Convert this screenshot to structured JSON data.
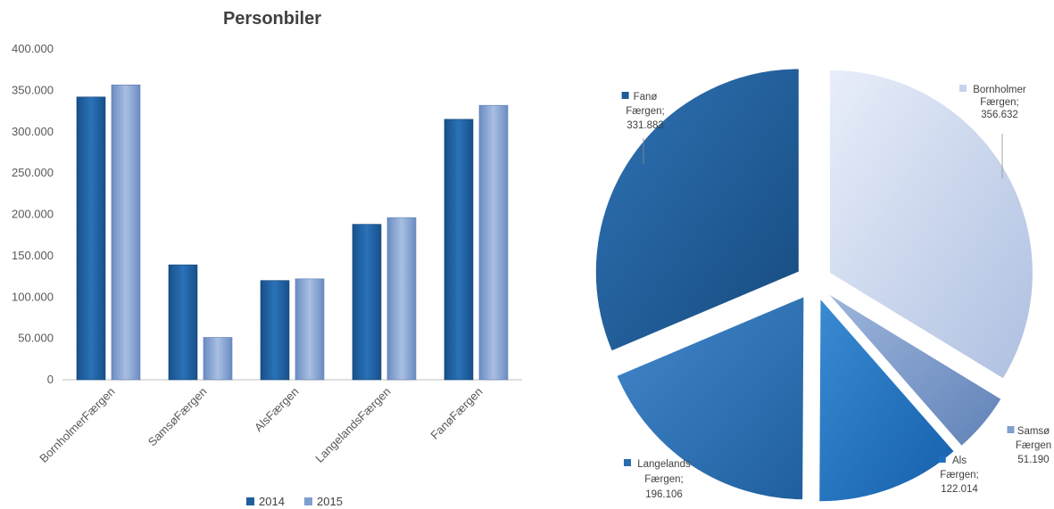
{
  "chart_data": [
    {
      "type": "bar",
      "title": "Personbiler",
      "categories": [
        "BornholmerFærgen",
        "SamsøFærgen",
        "AlsFærgen",
        "LangelandsFærgen",
        "FanøFærgen"
      ],
      "series": [
        {
          "name": "2014",
          "values": [
            342000,
            139000,
            120000,
            188000,
            315000
          ],
          "color": "#1f5f9c"
        },
        {
          "name": "2015",
          "values": [
            356632,
            51190,
            122014,
            196106,
            331883
          ],
          "color": "#7f9fcf"
        }
      ],
      "yticks": [
        "0",
        "50.000",
        "100.000",
        "150.000",
        "200.000",
        "250.000",
        "300.000",
        "350.000",
        "400.000"
      ],
      "ylim": [
        0,
        400000
      ],
      "legend": "bottom"
    },
    {
      "type": "pie",
      "slices": [
        {
          "name_lines": [
            "Bornholmer",
            "Færgen;"
          ],
          "value_label": "356.632",
          "value": 356632,
          "color": "#c5d3ee"
        },
        {
          "name_lines": [
            "Samsø",
            "Færgen"
          ],
          "value_label": "51.190",
          "value": 51190,
          "color": "#7f9fcf"
        },
        {
          "name_lines": [
            "Als",
            "Færgen;"
          ],
          "value_label": "122.014",
          "value": 122014,
          "color": "#1f6fbf"
        },
        {
          "name_lines": [
            "Langelands",
            "Færgen;"
          ],
          "value_label": "196.106",
          "value": 196106,
          "color": "#2a6cae"
        },
        {
          "name_lines": [
            "Fanø",
            "Færgen;"
          ],
          "value_label": "331.883",
          "value": 331883,
          "color": "#1d5b94"
        }
      ]
    }
  ]
}
